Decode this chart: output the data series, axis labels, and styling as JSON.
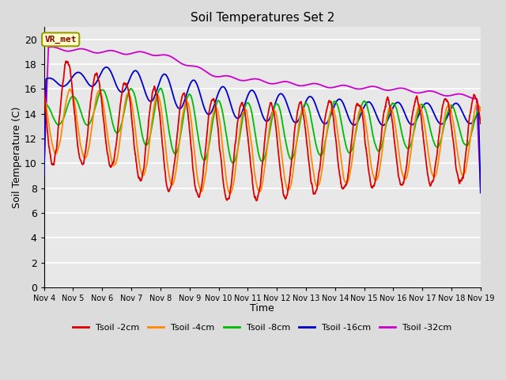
{
  "title": "Soil Temperatures Set 2",
  "xlabel": "Time",
  "ylabel": "Soil Temperature (C)",
  "ylim": [
    0,
    21
  ],
  "yticks": [
    0,
    2,
    4,
    6,
    8,
    10,
    12,
    14,
    16,
    18,
    20
  ],
  "x_labels": [
    "Nov 4",
    "Nov 5",
    "Nov 6",
    "Nov 7",
    "Nov 8",
    "Nov 9",
    "Nov 10",
    "Nov 11",
    "Nov 12",
    "Nov 13",
    "Nov 14",
    "Nov 15",
    "Nov 16",
    "Nov 17",
    "Nov 18",
    "Nov 19"
  ],
  "colors": {
    "Tsoil_2cm": "#dd0000",
    "Tsoil_4cm": "#ff8800",
    "Tsoil_8cm": "#00bb00",
    "Tsoil_16cm": "#0000cc",
    "Tsoil_32cm": "#cc00cc"
  },
  "legend_labels": [
    "Tsoil -2cm",
    "Tsoil -4cm",
    "Tsoil -8cm",
    "Tsoil -16cm",
    "Tsoil -32cm"
  ],
  "annotation_text": "VR_met",
  "bg_color": "#e8e8e8",
  "grid_color": "white",
  "n_points": 1500,
  "n_days": 15,
  "figsize": [
    6.4,
    4.8
  ],
  "dpi": 100
}
